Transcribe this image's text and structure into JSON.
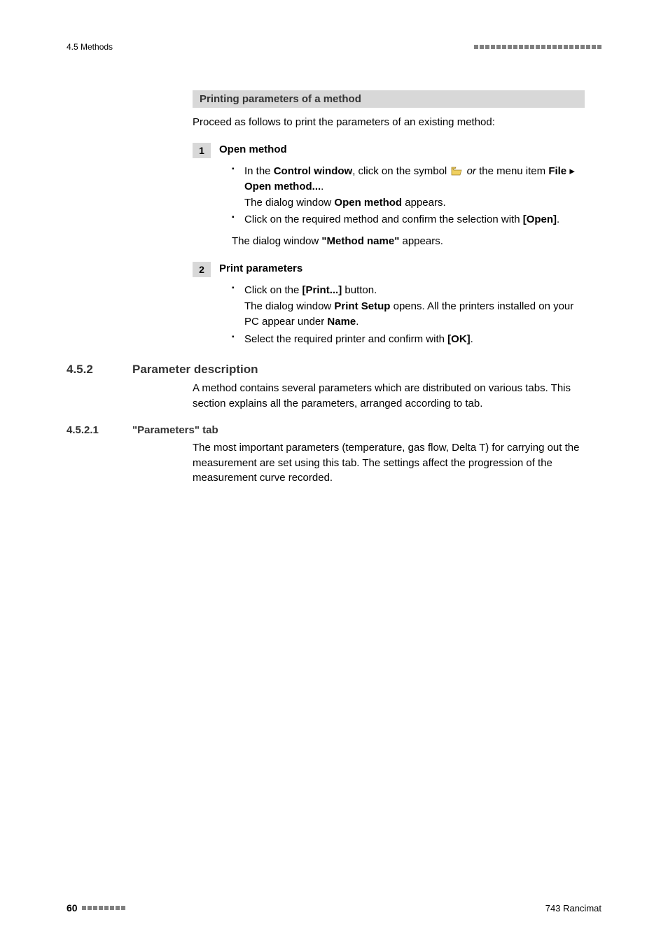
{
  "header": {
    "left": "4.5 Methods",
    "square_count": 23
  },
  "graybar": {
    "title": "Printing parameters of a method"
  },
  "intro": "Proceed as follows to print the parameters of an existing method:",
  "step1": {
    "num": "1",
    "title": "Open method",
    "b1_p1": "In the ",
    "b1_b1": "Control window",
    "b1_p2": ", click on the symbol ",
    "b1_i1": "or",
    "b1_p3": " the menu item ",
    "b1_b2": "File",
    "b1_b3": "Open method...",
    "b1_p4": ".",
    "b1_line2a": "The dialog window ",
    "b1_line2b": "Open method",
    "b1_line2c": " appears.",
    "b2_p1": "Click on the required method and confirm the selection with ",
    "b2_b1": "[Open]",
    "b2_p2": ".",
    "post_a": "The dialog window ",
    "post_b": "\"Method name\"",
    "post_c": " appears."
  },
  "step2": {
    "num": "2",
    "title": "Print parameters",
    "b1_p1": "Click on the ",
    "b1_b1": "[Print...]",
    "b1_p2": " button.",
    "b1_line2a": "The dialog window ",
    "b1_line2b": "Print Setup",
    "b1_line2c": " opens. All the printers installed on your PC appear under ",
    "b1_line2d": "Name",
    "b1_line2e": ".",
    "b2_p1": "Select the required printer and confirm with ",
    "b2_b1": "[OK]",
    "b2_p2": "."
  },
  "section": {
    "num": "4.5.2",
    "title": "Parameter description",
    "text": "A method contains several parameters which are distributed on various tabs. This section explains all the parameters, arranged according to tab."
  },
  "subsection": {
    "num": "4.5.2.1",
    "title": "\"Parameters\" tab",
    "text": "The most important parameters (temperature, gas flow, Delta T) for carrying out the measurement are set using this tab. The settings affect the progression of the measurement curve recorded."
  },
  "footer": {
    "page": "60",
    "square_count": 8,
    "right": "743 Rancimat"
  },
  "icon": {
    "open_folder_fill": "#f0d060",
    "open_folder_stroke": "#9a7a20"
  }
}
